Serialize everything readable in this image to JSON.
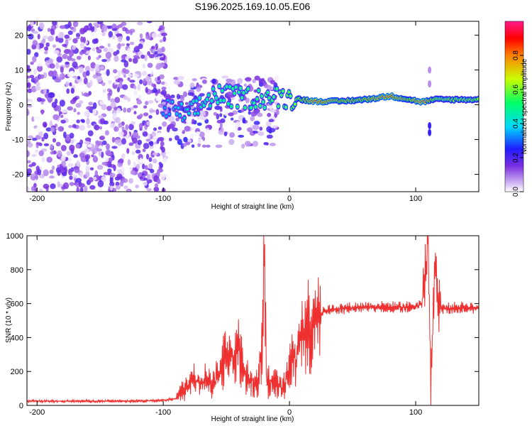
{
  "title": "S196.2025.169.10.05.E06",
  "chart_data": [
    {
      "type": "heatmap",
      "name": "spectrogram",
      "xlabel": "Height of straight line (km)",
      "ylabel": "Frequency (Hz)",
      "xlim": [
        -208,
        150
      ],
      "ylim": [
        -25,
        24
      ],
      "xticks": [
        -200,
        -100,
        0,
        100
      ],
      "xtick_labels": [
        "-200",
        "-100",
        "0",
        "100"
      ],
      "yticks": [
        -20,
        -10,
        0,
        10,
        20
      ],
      "ytick_labels": [
        "-20",
        "-10",
        "0",
        "10",
        "20"
      ],
      "colorbar": {
        "label": "Normalized spectral amplitude",
        "range": [
          0,
          1
        ],
        "ticks": [
          0.0,
          0.2,
          0.4,
          0.6,
          0.8
        ],
        "tick_labels": [
          "0.0",
          "0.2",
          "0.4",
          "0.6",
          "0.8"
        ],
        "colors": [
          "#ffffff",
          "#c9a8f0",
          "#7b2fe0",
          "#1f1cff",
          "#00d8ff",
          "#00ff66",
          "#c8ff00",
          "#ff8000",
          "#ff0000",
          "#ff1a8c"
        ]
      },
      "ridge": [
        {
          "x": -100,
          "f": -1,
          "amp": 0.35
        },
        {
          "x": -80,
          "f": -3,
          "amp": 0.45
        },
        {
          "x": -60,
          "f": 3,
          "amp": 0.5
        },
        {
          "x": -40,
          "f": 2,
          "amp": 0.55
        },
        {
          "x": -20,
          "f": 2,
          "amp": 0.55
        },
        {
          "x": 0,
          "f": 2,
          "amp": 0.6
        },
        {
          "x": 10,
          "f": 1.5,
          "amp": 0.7
        },
        {
          "x": 20,
          "f": 1,
          "amp": 0.9
        },
        {
          "x": 40,
          "f": 1,
          "amp": 0.75
        },
        {
          "x": 60,
          "f": 1.5,
          "amp": 0.75
        },
        {
          "x": 80,
          "f": 2.5,
          "amp": 0.9
        },
        {
          "x": 95,
          "f": 1.5,
          "amp": 0.7
        },
        {
          "x": 105,
          "f": 0.8,
          "amp": 0.9
        },
        {
          "x": 115,
          "f": 1.5,
          "amp": 0.65
        },
        {
          "x": 150,
          "f": 1.5,
          "amp": 0.65
        }
      ]
    },
    {
      "type": "line",
      "name": "snr",
      "xlabel": "Height of straight line (km)",
      "ylabel": "SNR (10 * v/v)",
      "xlim": [
        -208,
        150
      ],
      "ylim": [
        0,
        1000
      ],
      "xticks": [
        -200,
        -100,
        0,
        100
      ],
      "xtick_labels": [
        "-200",
        "-100",
        "0",
        "100"
      ],
      "yticks": [
        0,
        200,
        400,
        600,
        800,
        1000
      ],
      "ytick_labels": [
        "0",
        "200",
        "400",
        "600",
        "800",
        "1000"
      ],
      "color": "#ee3030",
      "series": [
        {
          "name": "SNR",
          "x": [
            -208,
            -200,
            -180,
            -160,
            -140,
            -120,
            -100,
            -90,
            -85,
            -80,
            -75,
            -70,
            -65,
            -60,
            -55,
            -50,
            -45,
            -40,
            -35,
            -30,
            -25,
            -22,
            -20,
            -18,
            -15,
            -10,
            -5,
            0,
            3,
            5,
            8,
            10,
            12,
            15,
            18,
            20,
            25,
            30,
            40,
            50,
            60,
            70,
            80,
            90,
            100,
            105,
            108,
            110,
            112,
            114,
            116,
            118,
            120,
            130,
            140,
            150
          ],
          "y": [
            25,
            25,
            25,
            25,
            25,
            25,
            30,
            40,
            80,
            120,
            150,
            130,
            160,
            120,
            200,
            320,
            280,
            330,
            180,
            150,
            120,
            350,
            900,
            120,
            150,
            120,
            100,
            200,
            320,
            250,
            380,
            420,
            450,
            470,
            500,
            520,
            540,
            560,
            570,
            575,
            580,
            580,
            580,
            580,
            580,
            600,
            800,
            1000,
            120,
            600,
            850,
            600,
            570,
            575,
            580,
            570
          ]
        }
      ]
    }
  ]
}
